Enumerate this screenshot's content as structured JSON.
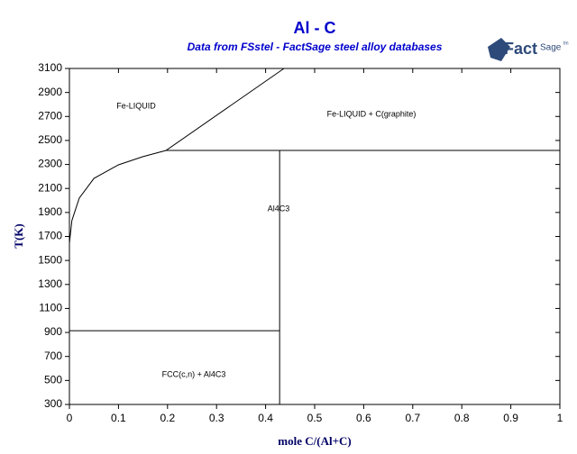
{
  "chart_data": {
    "type": "line",
    "title": "Al - C",
    "subtitle": "Data from FSstel - FactSage steel alloy databases",
    "logo": {
      "main": "Fact",
      "sub": "Sage",
      "mark": "tm"
    },
    "x_label": "mole C/(Al+C)",
    "y_label": "T(K)",
    "xlim": [
      0,
      1
    ],
    "ylim": [
      300,
      3100
    ],
    "xticks": [
      0,
      0.1,
      0.2,
      0.3,
      0.4,
      0.5,
      0.6,
      0.7,
      0.8,
      0.9,
      1
    ],
    "yticks": [
      300,
      500,
      700,
      900,
      1100,
      1300,
      1500,
      1700,
      1900,
      2100,
      2300,
      2500,
      2700,
      2900,
      3100
    ],
    "series": [
      {
        "color": "#000000",
        "x": [
          0,
          0.005,
          0.02,
          0.05,
          0.1,
          0.15,
          0.197,
          0.4375
        ],
        "values": [
          1644,
          1832,
          2019,
          2184,
          2297,
          2365,
          2417,
          3100
        ]
      },
      {
        "color": "#000000",
        "x": [
          0.197,
          1
        ],
        "values": [
          2417,
          2417
        ]
      },
      {
        "color": "#000000",
        "x": [
          0.4286,
          0.4286
        ],
        "values": [
          2417,
          300
        ]
      },
      {
        "color": "#000000",
        "x": [
          0,
          0.4286
        ],
        "values": [
          915,
          915
        ]
      }
    ],
    "annotations": [
      "Fe-LIQUID",
      "Fe-LIQUID + C(graphite)",
      "Al4C3",
      "FCC(c,n) + Al4C3"
    ]
  }
}
